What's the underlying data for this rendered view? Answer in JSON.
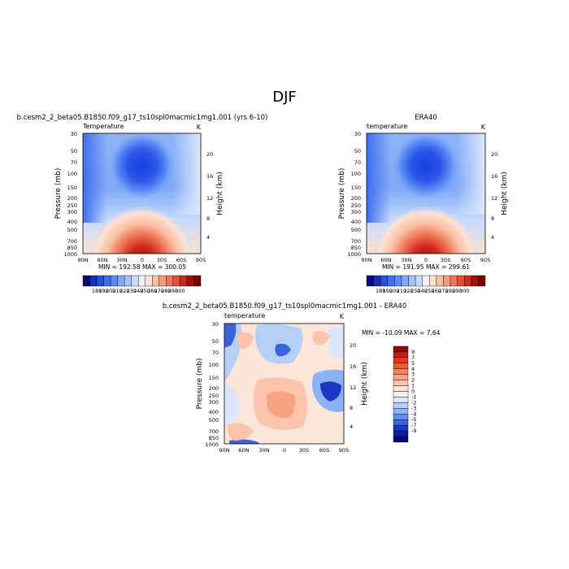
{
  "page": {
    "title": "DJF"
  },
  "panels": {
    "model": {
      "title": "b.cesm2_2_beta05.B1850.f09_g17_ts10spl0macmic1mg1.001 (yrs 6-10)",
      "var_label": "Temperature",
      "units": "K",
      "minmax": "MIN = 192.58   MAX = 300.05",
      "ylabel": "Pressure (mb)",
      "ylabel_right": "Height (km)"
    },
    "obs": {
      "title": "ERA40",
      "var_label": "temperature",
      "units": "K",
      "minmax": "MIN = 191.95   MAX = 299.61",
      "ylabel": "Pressure (mb)",
      "ylabel_right": "Height (km)"
    },
    "diff": {
      "title": "b.cesm2_2_beta05.B1850.f09_g17_ts10spl0macmic1mg1.001 - ERA40",
      "var_label": "temperature",
      "units": "K",
      "minmax": "MIN = -10.09   MAX =   7.64",
      "ylabel": "Pressure (mb)",
      "ylabel_right": "Height (km)"
    }
  },
  "axes": {
    "lat_ticks": [
      "90N",
      "60N",
      "30N",
      "0",
      "30S",
      "60S",
      "90S"
    ],
    "pressure_ticks": [
      "30",
      "50",
      "70",
      "100",
      "150",
      "200",
      "250",
      "300",
      "400",
      "500",
      "700",
      "850",
      "1000"
    ],
    "pressure_ticks_diff": [
      "30",
      "50",
      "70",
      "100",
      "150",
      "200",
      "250",
      "300",
      "400",
      "500",
      "700",
      "850",
      "1000"
    ],
    "height_ticks_upper": [
      "20",
      "16",
      "12",
      "8",
      "4"
    ],
    "height_ticks_diff": [
      "20",
      "16",
      "12",
      "8",
      "4"
    ]
  },
  "colorbars": {
    "temperature": {
      "labels": [
        "180",
        "190",
        "200",
        "210",
        "220",
        "230",
        "240",
        "250",
        "260",
        "270",
        "280",
        "290",
        "300"
      ],
      "colors": [
        "#0a0a78",
        "#1a2fb8",
        "#2a4fd8",
        "#3f6ef0",
        "#5a8cf5",
        "#7fa8f7",
        "#a3c3f8",
        "#c7dafb",
        "#eef2f8",
        "#fde2d3",
        "#f9c0a3",
        "#f59c7d",
        "#ef7658",
        "#e54e35",
        "#d02a1c",
        "#a30f0f",
        "#7a0000"
      ]
    },
    "difference": {
      "labels": [
        "9",
        "7",
        "5",
        "4",
        "3",
        "2",
        "1",
        "0",
        "-1",
        "-2",
        "-3",
        "-4",
        "-5",
        "-7",
        "-9"
      ],
      "colors": [
        "#8b0a0a",
        "#c0200f",
        "#e23a1c",
        "#ef5a34",
        "#f5825b",
        "#f8a382",
        "#fbc4ab",
        "#fde3d6",
        "#f3f3f3",
        "#dbe8fb",
        "#b5cff7",
        "#8cb2f2",
        "#5f8de9",
        "#3a63dc",
        "#1b38c0",
        "#0d1d96",
        "#050a6e"
      ]
    }
  },
  "chart_data": [
    {
      "type": "heatmap",
      "title": "b.cesm2_2_beta05.B1850.f09_g17_ts10spl0macmic1mg1.001 (yrs 6-10)",
      "variable": "Temperature",
      "units": "K",
      "x": [
        "90N",
        "60N",
        "30N",
        "0",
        "30S",
        "60S",
        "90S"
      ],
      "y_pressure_mb": [
        30,
        50,
        70,
        100,
        150,
        200,
        250,
        300,
        400,
        500,
        700,
        850,
        1000
      ],
      "min": 192.58,
      "max": 300.05,
      "ylim": [
        1000,
        30
      ]
    },
    {
      "type": "heatmap",
      "title": "ERA40",
      "variable": "temperature",
      "units": "K",
      "x": [
        "90N",
        "60N",
        "30N",
        "0",
        "30S",
        "60S",
        "90S"
      ],
      "y_pressure_mb": [
        30,
        50,
        70,
        100,
        150,
        200,
        250,
        300,
        400,
        500,
        700,
        850,
        1000
      ],
      "min": 191.95,
      "max": 299.61,
      "ylim": [
        1000,
        30
      ]
    },
    {
      "type": "heatmap",
      "title": "b.cesm2_2_beta05.B1850.f09_g17_ts10spl0macmic1mg1.001 - ERA40",
      "variable": "temperature",
      "units": "K",
      "x": [
        "90N",
        "60N",
        "30N",
        "0",
        "30S",
        "60S",
        "90S"
      ],
      "y_pressure_mb": [
        30,
        50,
        70,
        100,
        150,
        200,
        250,
        300,
        400,
        500,
        700,
        850,
        1000
      ],
      "min": -10.09,
      "max": 7.64,
      "ylim": [
        1000,
        30
      ]
    }
  ]
}
